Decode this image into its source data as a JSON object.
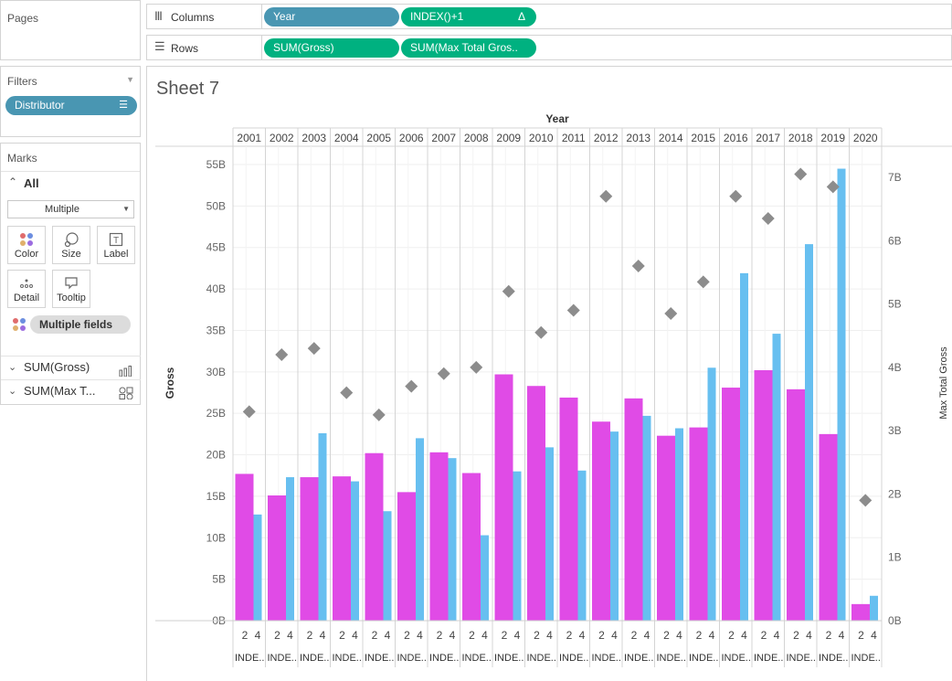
{
  "pages": {
    "title": "Pages"
  },
  "columns_shelf": {
    "label": "Columns",
    "pills": [
      {
        "label": "Year",
        "color": "#4996b2"
      },
      {
        "label": "INDEX()+1",
        "color": "#00b180",
        "badge": "Δ"
      }
    ]
  },
  "rows_shelf": {
    "label": "Rows",
    "pills": [
      {
        "label": "SUM(Gross)",
        "color": "#00b180"
      },
      {
        "label": "SUM(Max Total Gros..",
        "color": "#00b180"
      }
    ]
  },
  "filters": {
    "title": "Filters",
    "items": [
      {
        "label": "Distributor"
      }
    ]
  },
  "marks": {
    "title": "Marks",
    "all_label": "All",
    "mark_type": "Multiple",
    "buttons": [
      {
        "label": "Color",
        "icon": "color-dots-icon"
      },
      {
        "label": "Size",
        "icon": "size-icon"
      },
      {
        "label": "Label",
        "icon": "label-icon"
      },
      {
        "label": "Detail",
        "icon": "detail-icon"
      },
      {
        "label": "Tooltip",
        "icon": "tooltip-icon"
      }
    ],
    "multiple_fields": "Multiple fields",
    "measures": [
      {
        "label": "SUM(Gross)",
        "icon": "bar-chart-icon"
      },
      {
        "label": "SUM(Max T...",
        "icon": "shapes-icon"
      }
    ]
  },
  "sheet": {
    "title": "Sheet 7"
  },
  "chart_data": {
    "type": "bar",
    "title": "Year",
    "xlabel": "",
    "ylabel": "Gross",
    "y2label": "Max Total Gross",
    "categories": [
      "2001",
      "2002",
      "2003",
      "2004",
      "2005",
      "2006",
      "2007",
      "2008",
      "2009",
      "2010",
      "2011",
      "2012",
      "2013",
      "2014",
      "2015",
      "2016",
      "2017",
      "2018",
      "2019",
      "2020"
    ],
    "index_tick_labels": [
      "2",
      "4"
    ],
    "index_header_label": "INDE..",
    "y_ticks": [
      "0B",
      "5B",
      "10B",
      "15B",
      "20B",
      "25B",
      "30B",
      "35B",
      "40B",
      "45B",
      "50B",
      "55B"
    ],
    "y2_ticks": [
      "0B",
      "1B",
      "2B",
      "3B",
      "4B",
      "5B",
      "6B",
      "7B"
    ],
    "ylim": [
      0,
      58
    ],
    "y2lim": [
      0,
      7.4
    ],
    "series": [
      {
        "name": "",
        "color": "#e04be6",
        "values": [
          17.7,
          15.1,
          17.3,
          17.4,
          20.2,
          15.5,
          20.3,
          17.8,
          29.7,
          28.3,
          26.9,
          24.0,
          26.8,
          22.3,
          23.3,
          28.1,
          30.2,
          27.9,
          22.5,
          2.0
        ]
      },
      {
        "name": "",
        "color": "#67bff0",
        "values": [
          12.8,
          17.3,
          22.6,
          16.8,
          13.2,
          22.0,
          19.6,
          10.3,
          18.0,
          20.9,
          18.1,
          22.8,
          24.7,
          23.2,
          30.5,
          41.9,
          34.6,
          45.4,
          54.5,
          3.0
        ]
      },
      {
        "name": "",
        "color": "#8c8c8c",
        "shape": "diamond",
        "values": [
          3.3,
          4.2,
          4.3,
          3.6,
          3.25,
          3.7,
          3.9,
          4.0,
          5.2,
          4.55,
          4.9,
          6.7,
          5.6,
          4.85,
          5.35,
          6.7,
          6.35,
          7.05,
          6.85,
          1.9
        ]
      }
    ],
    "grid": true
  }
}
